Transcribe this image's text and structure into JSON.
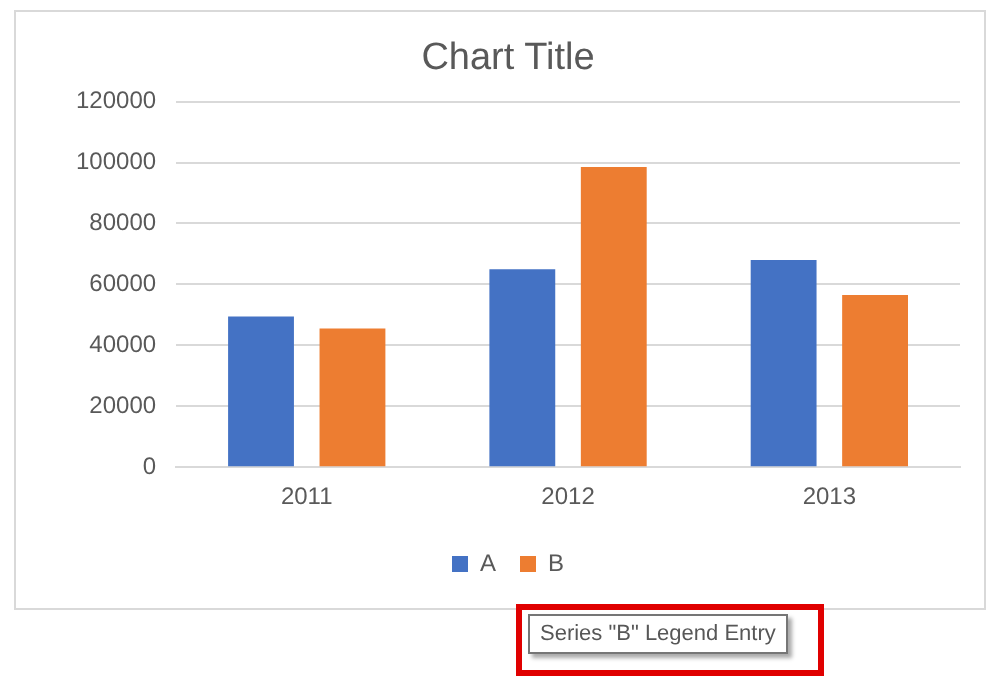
{
  "chart_data": {
    "type": "bar",
    "title": "Chart Title",
    "categories": [
      "2011",
      "2012",
      "2013"
    ],
    "series": [
      {
        "name": "A",
        "color": "#4472c4",
        "values": [
          49500,
          65000,
          68000
        ]
      },
      {
        "name": "B",
        "color": "#ed7d31",
        "values": [
          45500,
          98500,
          56500
        ]
      }
    ],
    "ylim": [
      0,
      120000
    ],
    "yticks": [
      0,
      20000,
      40000,
      60000,
      80000,
      100000,
      120000
    ],
    "grid": "y",
    "legend": "bottom",
    "annotations": [
      "Series \"B\" Legend Entry"
    ]
  }
}
